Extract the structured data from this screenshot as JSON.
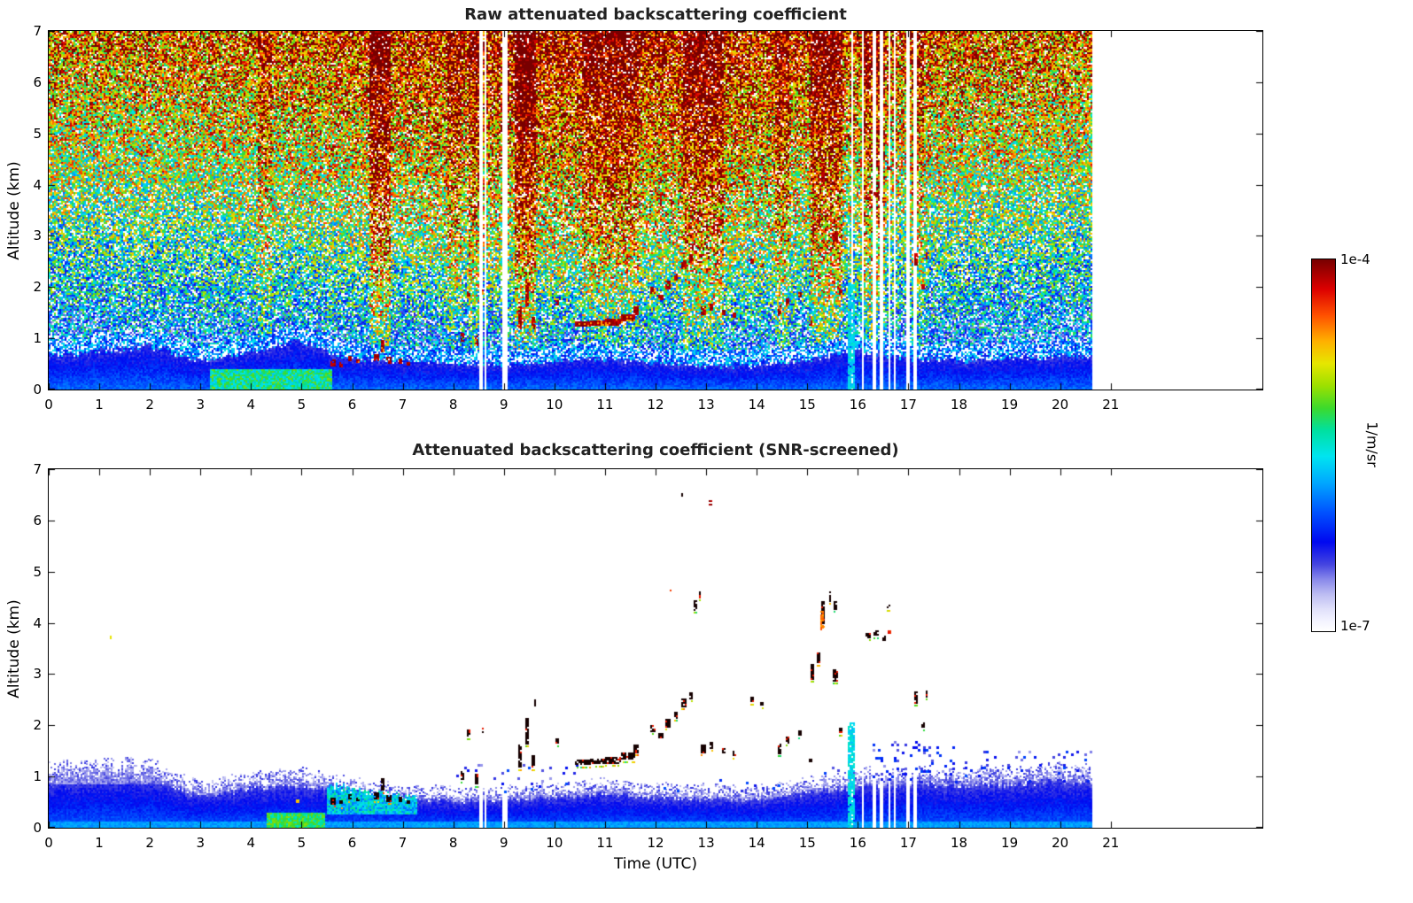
{
  "colorbar": {
    "max_label": "1e-4",
    "min_label": "1e-7",
    "unit": "1/m/sr",
    "stops": [
      [
        0.0,
        "#ffffff"
      ],
      [
        0.03,
        "#f2f2ff"
      ],
      [
        0.06,
        "#e0e0fa"
      ],
      [
        0.1,
        "#bcbcf2"
      ],
      [
        0.14,
        "#8888ea"
      ],
      [
        0.18,
        "#4444e0"
      ],
      [
        0.24,
        "#0008f0"
      ],
      [
        0.32,
        "#0052ff"
      ],
      [
        0.4,
        "#00a8ff"
      ],
      [
        0.47,
        "#00e4f0"
      ],
      [
        0.54,
        "#00e0a0"
      ],
      [
        0.6,
        "#3cda2c"
      ],
      [
        0.66,
        "#9ce000"
      ],
      [
        0.72,
        "#e6e600"
      ],
      [
        0.78,
        "#ffb000"
      ],
      [
        0.85,
        "#ff5000"
      ],
      [
        0.92,
        "#dc0000"
      ],
      [
        1.0,
        "#780000"
      ]
    ]
  },
  "gaps": [
    [
      8.52,
      0.05
    ],
    [
      8.63,
      0.04
    ],
    [
      8.96,
      0.12
    ],
    [
      15.88,
      0.04
    ],
    [
      16.07,
      0.04
    ],
    [
      16.3,
      0.05
    ],
    [
      16.44,
      0.05
    ],
    [
      16.6,
      0.04
    ],
    [
      16.7,
      0.03
    ],
    [
      16.97,
      0.05
    ],
    [
      17.1,
      0.06
    ]
  ],
  "cloud_features": [
    [
      5.62,
      0.52,
      0.1,
      0.12
    ],
    [
      5.78,
      0.48,
      0.08,
      0.1
    ],
    [
      5.95,
      0.6,
      0.06,
      0.1
    ],
    [
      6.1,
      0.55,
      0.05,
      0.08
    ],
    [
      6.48,
      0.62,
      0.1,
      0.15
    ],
    [
      6.6,
      0.85,
      0.06,
      0.25
    ],
    [
      6.72,
      0.58,
      0.08,
      0.12
    ],
    [
      6.95,
      0.55,
      0.06,
      0.1
    ],
    [
      7.1,
      0.5,
      0.05,
      0.08
    ],
    [
      8.18,
      1.02,
      0.06,
      0.18
    ],
    [
      8.3,
      1.85,
      0.08,
      0.15
    ],
    [
      8.45,
      0.95,
      0.05,
      0.2
    ],
    [
      8.58,
      1.9,
      0.04,
      0.1
    ],
    [
      9.32,
      1.4,
      0.06,
      0.45
    ],
    [
      9.45,
      1.9,
      0.06,
      0.5
    ],
    [
      9.58,
      1.3,
      0.05,
      0.25
    ],
    [
      9.62,
      2.45,
      0.04,
      0.12
    ],
    [
      10.05,
      1.7,
      0.05,
      0.1
    ],
    [
      10.55,
      1.28,
      0.3,
      0.1
    ],
    [
      10.85,
      1.3,
      0.3,
      0.1
    ],
    [
      11.15,
      1.32,
      0.3,
      0.12
    ],
    [
      11.45,
      1.4,
      0.25,
      0.15
    ],
    [
      11.62,
      1.55,
      0.1,
      0.15
    ],
    [
      11.95,
      1.95,
      0.1,
      0.12
    ],
    [
      12.1,
      1.8,
      0.08,
      0.1
    ],
    [
      12.25,
      2.05,
      0.1,
      0.15
    ],
    [
      12.4,
      2.2,
      0.08,
      0.12
    ],
    [
      12.55,
      2.45,
      0.08,
      0.15
    ],
    [
      12.7,
      2.58,
      0.08,
      0.12
    ],
    [
      12.78,
      4.35,
      0.05,
      0.18
    ],
    [
      12.88,
      4.55,
      0.04,
      0.12
    ],
    [
      12.52,
      6.5,
      0.04,
      0.08
    ],
    [
      12.95,
      1.55,
      0.1,
      0.15
    ],
    [
      13.1,
      1.62,
      0.08,
      0.12
    ],
    [
      13.35,
      1.5,
      0.08,
      0.1
    ],
    [
      13.55,
      1.45,
      0.06,
      0.1
    ],
    [
      13.9,
      2.5,
      0.06,
      0.1
    ],
    [
      14.1,
      2.42,
      0.05,
      0.08
    ],
    [
      14.45,
      1.55,
      0.08,
      0.2
    ],
    [
      14.6,
      1.72,
      0.06,
      0.12
    ],
    [
      14.85,
      1.85,
      0.05,
      0.1
    ],
    [
      15.05,
      1.3,
      0.05,
      0.1
    ],
    [
      15.1,
      3.05,
      0.06,
      0.3
    ],
    [
      15.22,
      3.32,
      0.05,
      0.2
    ],
    [
      15.3,
      4.2,
      0.06,
      0.45
    ],
    [
      15.45,
      4.52,
      0.05,
      0.2
    ],
    [
      15.55,
      4.35,
      0.05,
      0.15
    ],
    [
      15.55,
      2.98,
      0.08,
      0.22
    ],
    [
      15.65,
      1.9,
      0.05,
      0.1
    ],
    [
      16.2,
      3.76,
      0.08,
      0.1
    ],
    [
      16.35,
      3.8,
      0.08,
      0.1
    ],
    [
      16.52,
      3.7,
      0.06,
      0.1
    ],
    [
      16.6,
      4.32,
      0.04,
      0.08
    ],
    [
      17.15,
      2.55,
      0.06,
      0.22
    ],
    [
      17.28,
      2.0,
      0.05,
      0.1
    ],
    [
      17.36,
      2.62,
      0.05,
      0.12
    ]
  ],
  "chart_data": [
    {
      "id": "raw",
      "type": "heatmap",
      "title": "Raw attenuated backscattering coefficient",
      "xlabel": "",
      "ylabel": "Altitude (km)",
      "xlim": [
        0,
        24
      ],
      "ylim": [
        0,
        7
      ],
      "x_ticks": [
        0,
        1,
        2,
        3,
        4,
        5,
        6,
        7,
        8,
        9,
        10,
        11,
        12,
        13,
        14,
        15,
        16,
        17,
        18,
        19,
        20,
        21
      ],
      "y_ticks": [
        0,
        1,
        2,
        3,
        4,
        5,
        6,
        7
      ],
      "data_end": 20.65,
      "value_min": "1e-7",
      "value_max": "1e-4",
      "units": "1/m/sr",
      "grid": false,
      "boundary_layer_km": [
        0.65,
        0.75,
        0.85,
        0.55,
        0.75,
        0.95,
        0.6,
        0.52,
        0.5,
        0.48,
        0.55,
        0.6,
        0.5,
        0.45,
        0.45,
        0.55,
        0.75,
        0.6,
        0.55,
        0.6,
        0.65,
        0.65
      ],
      "streaks": [
        [
          4.15,
          4.4,
          0.12
        ],
        [
          6.35,
          6.75,
          0.22
        ],
        [
          7.9,
          8.15,
          0.1
        ],
        [
          8.3,
          8.5,
          0.1
        ],
        [
          9.2,
          9.65,
          0.2
        ],
        [
          10.55,
          11.65,
          0.1
        ],
        [
          12.55,
          13.35,
          0.14
        ],
        [
          14.35,
          14.65,
          0.12
        ],
        [
          15.05,
          15.7,
          0.18
        ],
        [
          16.1,
          16.55,
          0.14
        ],
        [
          17.05,
          17.3,
          0.1
        ]
      ],
      "cyan_streak": {
        "t0": 15.8,
        "t1": 15.92,
        "alt_top": 2.05
      }
    },
    {
      "id": "screened",
      "type": "heatmap",
      "title": "Attenuated backscattering coefficient (SNR-screened)",
      "xlabel": "Time (UTC)",
      "ylabel": "Altitude (km)",
      "xlim": [
        0,
        24
      ],
      "ylim": [
        0,
        7
      ],
      "x_ticks": [
        0,
        1,
        2,
        3,
        4,
        5,
        6,
        7,
        8,
        9,
        10,
        11,
        12,
        13,
        14,
        15,
        16,
        17,
        18,
        19,
        20,
        21
      ],
      "y_ticks": [
        0,
        1,
        2,
        3,
        4,
        5,
        6,
        7
      ],
      "data_end": 20.65,
      "value_min": "1e-7",
      "value_max": "1e-4",
      "units": "1/m/sr",
      "grid": false,
      "boundary_layer_km": [
        1.05,
        1.1,
        1.15,
        0.7,
        0.88,
        0.95,
        0.78,
        0.65,
        0.6,
        0.62,
        0.7,
        0.78,
        0.68,
        0.65,
        0.62,
        0.78,
        0.95,
        1.0,
        0.95,
        1.0,
        1.05,
        1.0
      ],
      "surface_green_band": {
        "t0": 4.3,
        "t1": 5.45,
        "alt_top": 0.28
      },
      "mottled_band": {
        "t0": 5.5,
        "t1": 7.3,
        "alt_bottom": 0.25
      },
      "cyan_streak": {
        "t0": 15.8,
        "t1": 15.92,
        "alt_top": 2.05
      },
      "sparse_dots": [
        [
          8.0,
          10.5,
          0.65,
          1.25,
          0.05
        ],
        [
          12.0,
          14.6,
          0.65,
          1.0,
          0.03
        ],
        [
          16.3,
          18.0,
          0.9,
          1.7,
          0.12
        ],
        [
          18.0,
          20.65,
          0.9,
          1.5,
          0.1
        ],
        [
          14.8,
          15.6,
          0.8,
          1.2,
          0.05
        ]
      ],
      "colored_features": [
        [
          13.08,
          6.35,
          0.06,
          0.1,
          0.97
        ],
        [
          15.28,
          4.05,
          0.06,
          0.38,
          0.82
        ],
        [
          16.62,
          3.82,
          0.05,
          0.08,
          0.9
        ],
        [
          4.92,
          0.52,
          0.06,
          0.06,
          0.75
        ],
        [
          1.22,
          3.72,
          0.03,
          0.05,
          0.7
        ],
        [
          12.3,
          4.62,
          0.03,
          0.06,
          0.88
        ]
      ]
    }
  ]
}
